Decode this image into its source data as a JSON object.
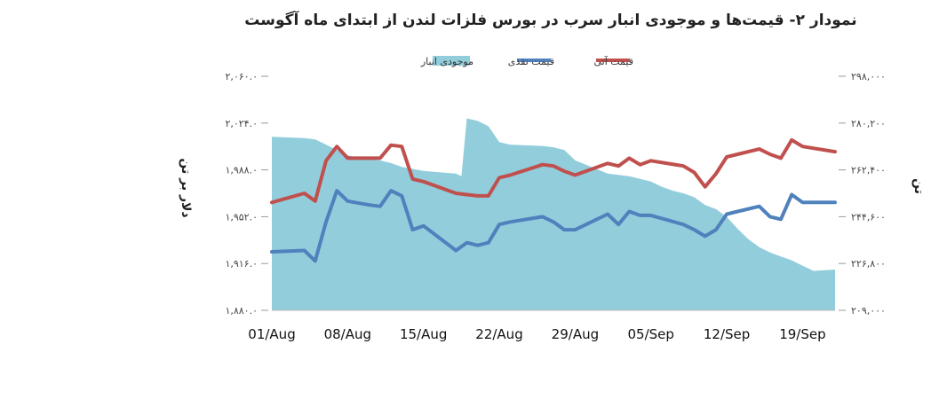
{
  "chart_data": {
    "type": "line",
    "title": "نمودار ۲- قیمت‌ها و موجودی انبار سرب در بورس فلزات لندن از ابتدای ماه آگوست",
    "ylabel_left": "دلار بر تن",
    "ylabel_right": "تن",
    "legend_placement": "top",
    "legend": [
      {
        "name": "موجودی انبار",
        "color": "#92CDDC",
        "kind": "area"
      },
      {
        "name": "قیمت نقدی",
        "color": "#4F81BD",
        "kind": "line"
      },
      {
        "name": "قیمت آتی",
        "color": "#C0504D",
        "kind": "line"
      }
    ],
    "x_ticks": [
      "01/Aug",
      "08/Aug",
      "15/Aug",
      "22/Aug",
      "29/Aug",
      "05/Sep",
      "12/Sep",
      "19/Sep"
    ],
    "x_range_days": [
      0,
      52
    ],
    "y_left": {
      "min": 1880,
      "max": 2060,
      "ticks": [
        1880,
        1916,
        1952,
        1988,
        2024,
        2060
      ],
      "tick_labels": [
        "۱,۸۸۰.۰",
        "۱,۹۱۶.۰",
        "۱,۹۵۲.۰",
        "۱,۹۸۸.۰",
        "۲,۰۲۴.۰",
        "۲,۰۶۰.۰"
      ]
    },
    "y_right": {
      "min": 209000,
      "max": 298000,
      "ticks": [
        209000,
        226800,
        244600,
        262400,
        280200,
        298000
      ],
      "tick_labels": [
        "۲۰۹,۰۰۰",
        "۲۲۶,۸۰۰",
        "۲۴۴,۶۰۰",
        "۲۶۲,۴۰۰",
        "۲۸۰,۲۰۰",
        "۲۹۸,۰۰۰"
      ]
    },
    "series": [
      {
        "name": "موجودی انبار",
        "axis": "right",
        "color": "#92CDDC",
        "points": [
          [
            0,
            275000
          ],
          [
            3,
            274500
          ],
          [
            4,
            274000
          ],
          [
            5,
            272000
          ],
          [
            6,
            270000
          ],
          [
            7,
            268000
          ],
          [
            8,
            267000
          ],
          [
            10,
            266000
          ],
          [
            11,
            265000
          ],
          [
            12,
            263500
          ],
          [
            14,
            262000
          ],
          [
            17,
            261000
          ],
          [
            17.5,
            260000
          ],
          [
            18,
            282000
          ],
          [
            19,
            281000
          ],
          [
            20,
            279000
          ],
          [
            21,
            273000
          ],
          [
            22,
            272000
          ],
          [
            25,
            271500
          ],
          [
            26,
            271000
          ],
          [
            27,
            270000
          ],
          [
            28,
            266000
          ],
          [
            31,
            261000
          ],
          [
            33,
            260000
          ],
          [
            35,
            258000
          ],
          [
            36,
            256000
          ],
          [
            37,
            254500
          ],
          [
            38,
            253500
          ],
          [
            39,
            252000
          ],
          [
            40,
            249000
          ],
          [
            41,
            247500
          ],
          [
            42,
            244500
          ],
          [
            43,
            240000
          ],
          [
            44,
            236000
          ],
          [
            45,
            233000
          ],
          [
            46,
            231000
          ],
          [
            47,
            229500
          ],
          [
            48,
            228000
          ],
          [
            49,
            226000
          ],
          [
            50,
            224000
          ],
          [
            52,
            224500
          ]
        ]
      },
      {
        "name": "قیمت نقدی",
        "axis": "left",
        "color": "#4F81BD",
        "points": [
          [
            0,
            1925
          ],
          [
            3,
            1926
          ],
          [
            4,
            1918
          ],
          [
            5,
            1948
          ],
          [
            6,
            1972
          ],
          [
            7,
            1964
          ],
          [
            9,
            1961
          ],
          [
            10,
            1960
          ],
          [
            11,
            1972
          ],
          [
            12,
            1968
          ],
          [
            13,
            1942
          ],
          [
            14,
            1945
          ],
          [
            17,
            1926
          ],
          [
            18,
            1932
          ],
          [
            19,
            1930
          ],
          [
            20,
            1932
          ],
          [
            21,
            1946
          ],
          [
            22,
            1948
          ],
          [
            25,
            1952
          ],
          [
            26,
            1948
          ],
          [
            27,
            1942
          ],
          [
            28,
            1942
          ],
          [
            31,
            1954
          ],
          [
            32,
            1946
          ],
          [
            33,
            1956
          ],
          [
            34,
            1953
          ],
          [
            35,
            1953
          ],
          [
            38,
            1946
          ],
          [
            39,
            1942
          ],
          [
            40,
            1937
          ],
          [
            41,
            1942
          ],
          [
            42,
            1954
          ],
          [
            43,
            1956
          ],
          [
            45,
            1960
          ],
          [
            46,
            1952
          ],
          [
            47,
            1950
          ],
          [
            48,
            1969
          ],
          [
            49,
            1963
          ],
          [
            52,
            1963
          ]
        ]
      },
      {
        "name": "قیمت آتی",
        "axis": "left",
        "color": "#C0504D",
        "points": [
          [
            0,
            1963
          ],
          [
            3,
            1970
          ],
          [
            4,
            1964
          ],
          [
            5,
            1995
          ],
          [
            6,
            2006
          ],
          [
            7,
            1997
          ],
          [
            10,
            1997
          ],
          [
            11,
            2007
          ],
          [
            12,
            2006
          ],
          [
            13,
            1981
          ],
          [
            14,
            1979
          ],
          [
            17,
            1970
          ],
          [
            18,
            1969
          ],
          [
            19,
            1968
          ],
          [
            20,
            1968
          ],
          [
            21,
            1982
          ],
          [
            22,
            1984
          ],
          [
            25,
            1992
          ],
          [
            26,
            1991
          ],
          [
            27,
            1987
          ],
          [
            28,
            1984
          ],
          [
            31,
            1993
          ],
          [
            32,
            1991
          ],
          [
            33,
            1997
          ],
          [
            34,
            1992
          ],
          [
            35,
            1995
          ],
          [
            38,
            1991
          ],
          [
            39,
            1986
          ],
          [
            40,
            1975
          ],
          [
            41,
            1985
          ],
          [
            42,
            1998
          ],
          [
            43,
            2000
          ],
          [
            45,
            2004
          ],
          [
            46,
            2000
          ],
          [
            47,
            1997
          ],
          [
            48,
            2011
          ],
          [
            49,
            2006
          ],
          [
            52,
            2002
          ]
        ]
      }
    ]
  }
}
